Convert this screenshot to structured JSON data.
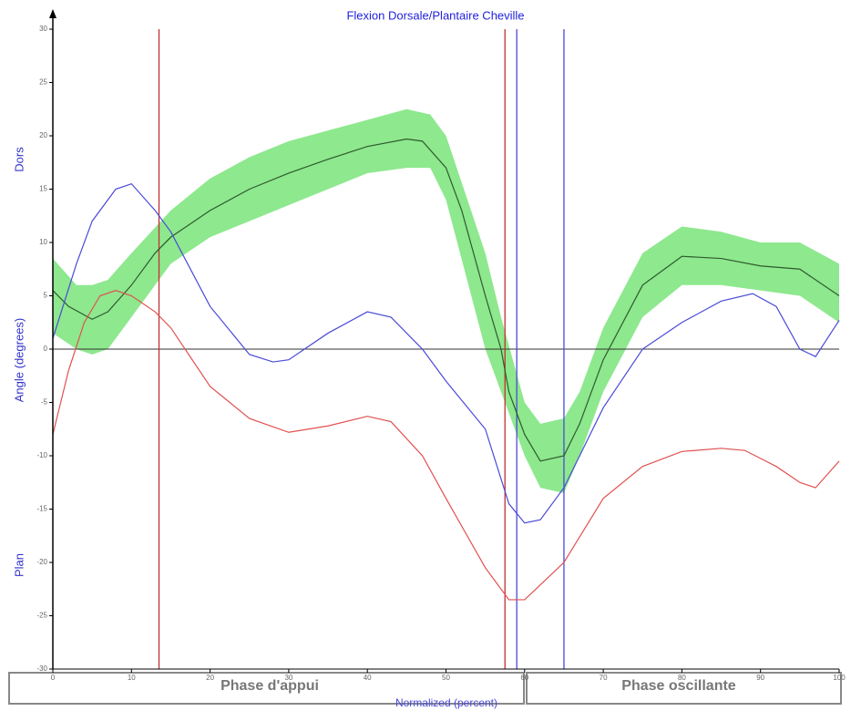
{
  "chart_data": {
    "type": "line",
    "title": "Flexion Dorsale/Plantaire Cheville",
    "x_label": "Normalized (percent)",
    "y_label": "Angle (degrees)",
    "y_top_label": "Dors",
    "y_bottom_label": "Plan",
    "phases": [
      "Phase d'appui",
      "Phase oscillante"
    ],
    "xlim": [
      0,
      100
    ],
    "ylim": [
      -30,
      30
    ],
    "xticks": [
      0,
      10,
      20,
      30,
      40,
      50,
      60,
      70,
      80,
      90,
      100
    ],
    "yticks": [
      -30,
      -25,
      -20,
      -15,
      -10,
      -5,
      0,
      5,
      10,
      15,
      20,
      25,
      30
    ],
    "band": {
      "color": "#8ee88e",
      "x": [
        0,
        3,
        5,
        7,
        10,
        15,
        20,
        25,
        30,
        35,
        40,
        45,
        48,
        50,
        55,
        57,
        60,
        62,
        65,
        67,
        70,
        75,
        80,
        85,
        90,
        95,
        100
      ],
      "upper": [
        8.5,
        6,
        6,
        6.5,
        9,
        13,
        16,
        18,
        19.5,
        20.5,
        21.5,
        22.5,
        22,
        20,
        9,
        3,
        -5,
        -7,
        -6.5,
        -4,
        2,
        9,
        11.5,
        11,
        10,
        10,
        8
      ],
      "lower": [
        1.5,
        0,
        -0.5,
        0,
        3,
        8,
        10.5,
        12,
        13.5,
        15,
        16.5,
        17,
        17,
        14,
        0,
        -4,
        -10,
        -13,
        -13.5,
        -10,
        -4,
        3,
        6,
        6,
        5.5,
        5,
        2.5
      ]
    },
    "series": [
      {
        "color": "#2e5a2e",
        "x": [
          0,
          2,
          5,
          7,
          10,
          13,
          15,
          20,
          25,
          30,
          35,
          40,
          45,
          47,
          50,
          52,
          55,
          57,
          58,
          60,
          62,
          65,
          67,
          70,
          75,
          80,
          85,
          90,
          95,
          100
        ],
        "values": [
          5.5,
          4,
          2.8,
          3.5,
          6,
          9,
          10.5,
          13,
          15,
          16.5,
          17.8,
          19,
          19.7,
          19.5,
          17,
          13,
          5,
          0,
          -4,
          -8,
          -10.5,
          -10,
          -7,
          -1,
          6,
          8.7,
          8.5,
          7.8,
          7.5,
          5
        ]
      },
      {
        "color": "#4a4ad8",
        "x": [
          0,
          3,
          5,
          8,
          10,
          13,
          15,
          20,
          25,
          28,
          30,
          35,
          40,
          43,
          47,
          50,
          55,
          58,
          60,
          62,
          65,
          70,
          75,
          80,
          85,
          89,
          92,
          95,
          97,
          100
        ],
        "values": [
          1,
          8,
          12,
          15,
          15.5,
          13,
          11,
          4,
          -0.5,
          -1.2,
          -1,
          1.5,
          3.5,
          3,
          0,
          -3,
          -7.5,
          -14.5,
          -16.3,
          -16,
          -13,
          -5.5,
          0,
          2.5,
          4.5,
          5.2,
          4,
          0,
          -0.7,
          2.7
        ]
      },
      {
        "color": "#e05050",
        "x": [
          0,
          2,
          4,
          6,
          8,
          10,
          13,
          15,
          20,
          25,
          30,
          35,
          40,
          43,
          47,
          50,
          55,
          58,
          60,
          65,
          70,
          75,
          80,
          85,
          88,
          92,
          95,
          97,
          100
        ],
        "values": [
          -8,
          -2,
          2.5,
          5,
          5.5,
          5,
          3.5,
          2,
          -3.5,
          -6.5,
          -7.8,
          -7.2,
          -6.3,
          -6.8,
          -10,
          -14,
          -20.5,
          -23.5,
          -23.5,
          -20,
          -14,
          -11,
          -9.6,
          -9.3,
          -9.5,
          -11,
          -12.5,
          -13,
          -10.5
        ]
      }
    ],
    "vlines": [
      {
        "x": 13.5,
        "color": "#c03030"
      },
      {
        "x": 57.5,
        "color": "#c03030"
      },
      {
        "x": 59,
        "color": "#4a4ad8"
      },
      {
        "x": 65,
        "color": "#4a4ad8"
      }
    ]
  }
}
